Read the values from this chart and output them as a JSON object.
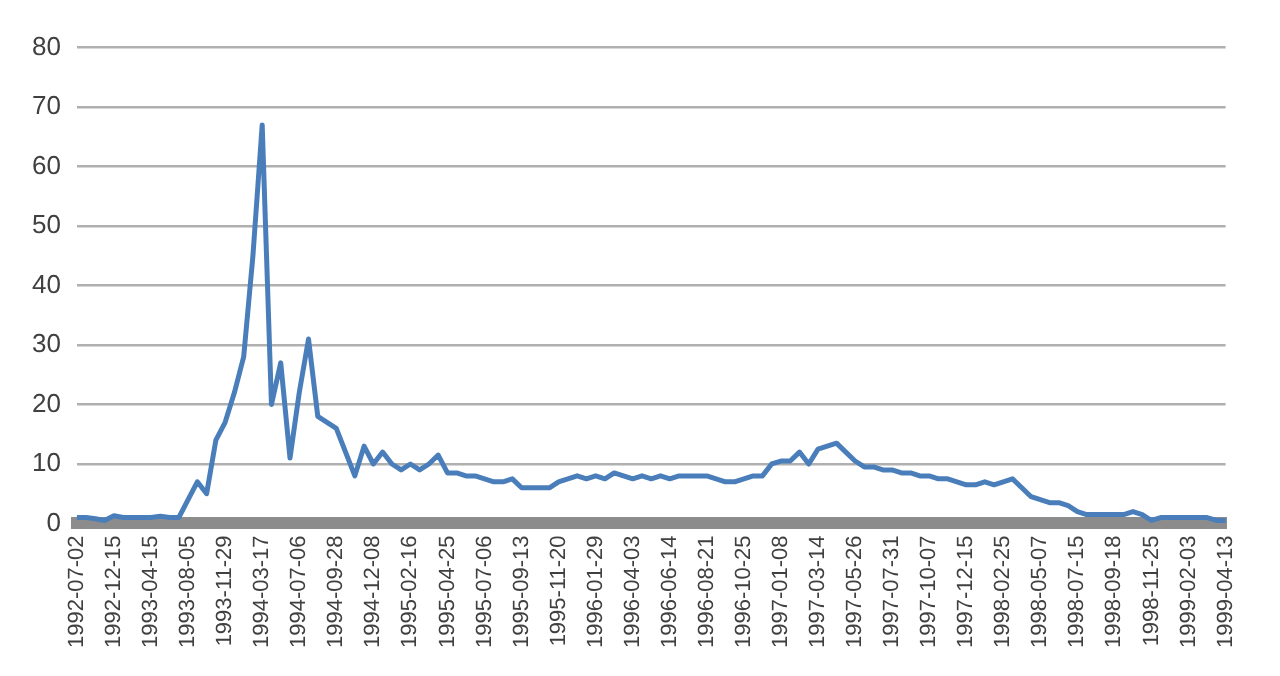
{
  "chart_data": {
    "type": "line",
    "categories": [
      "1992-07-02",
      null,
      null,
      null,
      "1992-12-15",
      null,
      null,
      null,
      "1993-04-15",
      null,
      null,
      null,
      "1993-08-05",
      null,
      null,
      null,
      "1993-11-29",
      null,
      null,
      null,
      "1994-03-17",
      null,
      null,
      null,
      "1994-07-06",
      null,
      null,
      null,
      "1994-09-28",
      null,
      null,
      null,
      "1994-12-08",
      null,
      null,
      null,
      "1995-02-16",
      null,
      null,
      null,
      "1995-04-25",
      null,
      null,
      null,
      "1995-07-06",
      null,
      null,
      null,
      "1995-09-13",
      null,
      null,
      null,
      "1995-11-20",
      null,
      null,
      null,
      "1996-01-29",
      null,
      null,
      null,
      "1996-04-03",
      null,
      null,
      null,
      "1996-06-14",
      null,
      null,
      null,
      "1996-08-21",
      null,
      null,
      null,
      "1996-10-25",
      null,
      null,
      null,
      "1997-01-08",
      null,
      null,
      null,
      "1997-03-14",
      null,
      null,
      null,
      "1997-05-26",
      null,
      null,
      null,
      "1997-07-31",
      null,
      null,
      null,
      "1997-10-07",
      null,
      null,
      null,
      "1997-12-15",
      null,
      null,
      null,
      "1998-02-25",
      null,
      null,
      null,
      "1998-05-07",
      null,
      null,
      null,
      "1998-07-15",
      null,
      null,
      null,
      "1998-09-18",
      null,
      null,
      null,
      "1998-11-25",
      null,
      null,
      null,
      "1999-02-03",
      null,
      null,
      null,
      "1999-04-13"
    ],
    "series": [
      {
        "color": "#4a7ebb",
        "values": [
          1,
          1,
          0.8,
          0.5,
          1.3,
          1,
          1,
          1,
          1,
          1.2,
          1,
          1,
          4,
          7,
          5,
          14,
          17,
          22,
          28,
          45,
          67,
          20,
          27,
          11,
          22,
          31,
          18,
          17,
          16,
          12,
          8,
          13,
          10,
          12,
          10,
          9,
          10,
          9,
          10,
          11.5,
          8.5,
          8.5,
          8,
          8,
          7.5,
          7,
          7,
          7.5,
          6,
          6,
          6,
          6,
          7,
          7.5,
          8,
          7.5,
          8,
          7.5,
          8.5,
          8,
          7.5,
          8,
          7.5,
          8,
          7.5,
          8,
          8,
          8,
          8,
          7.5,
          7,
          7,
          7.5,
          8,
          8,
          10,
          10.5,
          10.5,
          12,
          10,
          12.5,
          13,
          13.5,
          12,
          10.5,
          9.5,
          9.5,
          9,
          9,
          8.5,
          8.5,
          8,
          8,
          7.5,
          7.5,
          7,
          6.5,
          6.5,
          7,
          6.5,
          7,
          7.5,
          6,
          4.5,
          4,
          3.5,
          3.5,
          3,
          2,
          1.5,
          1.5,
          1.5,
          1.5,
          1.5,
          2,
          1.5,
          0.5,
          1,
          1,
          1,
          1,
          1,
          1,
          0.5,
          0.5
        ]
      }
    ],
    "ylim": [
      0,
      80
    ],
    "yticks": [
      0,
      10,
      20,
      30,
      40,
      50,
      60,
      70,
      80
    ],
    "grid": "y",
    "marker": "none",
    "line_style": "solid",
    "legend": false
  }
}
